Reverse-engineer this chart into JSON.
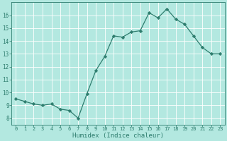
{
  "x": [
    0,
    1,
    2,
    3,
    4,
    5,
    6,
    7,
    8,
    9,
    10,
    11,
    12,
    13,
    14,
    15,
    16,
    17,
    18,
    19,
    20,
    21,
    22,
    23
  ],
  "y": [
    9.5,
    9.3,
    9.1,
    9.0,
    9.1,
    8.7,
    8.6,
    8.0,
    9.9,
    11.7,
    12.8,
    14.4,
    14.3,
    14.7,
    14.8,
    16.2,
    15.8,
    16.5,
    15.7,
    15.3,
    14.4,
    13.5,
    13.0,
    13.0
  ],
  "xlabel": "Humidex (Indice chaleur)",
  "xlim": [
    -0.5,
    23.5
  ],
  "ylim": [
    7.5,
    17.0
  ],
  "yticks": [
    8,
    9,
    10,
    11,
    12,
    13,
    14,
    15,
    16
  ],
  "xticks": [
    0,
    1,
    2,
    3,
    4,
    5,
    6,
    7,
    8,
    9,
    10,
    11,
    12,
    13,
    14,
    15,
    16,
    17,
    18,
    19,
    20,
    21,
    22,
    23
  ],
  "line_color": "#2e7d6e",
  "marker": "D",
  "marker_size": 2.2,
  "bg_color": "#b3e8e0",
  "grid_color": "#ffffff",
  "tick_color": "#2e7d6e",
  "label_color": "#2e7d6e",
  "spine_color": "#2e7d6e"
}
